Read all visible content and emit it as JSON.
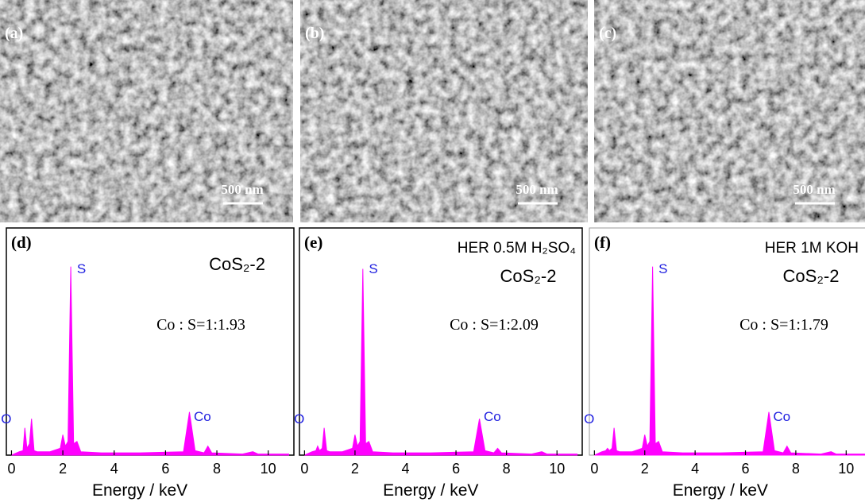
{
  "sem_panels": [
    {
      "label": "(a)",
      "scale_bar": "500 nm"
    },
    {
      "label": "(b)",
      "scale_bar": "500 nm"
    },
    {
      "label": "(c)",
      "scale_bar": "500 nm"
    }
  ],
  "chart_data": [
    {
      "type": "area",
      "panel_label": "(d)",
      "sample": "CoS₂-2",
      "ratio_text": "Co : S=1:1.93",
      "peak_labels": [
        "O",
        "S",
        "Co"
      ],
      "color": "#ff00ff",
      "xlabel": "Energy / keV",
      "xlim": [
        -0.2,
        11
      ],
      "ylim": [
        0,
        100
      ],
      "xticks": [
        0,
        2,
        4,
        6,
        8,
        10
      ],
      "x": [
        0,
        0.3,
        0.45,
        0.52,
        0.6,
        0.7,
        0.78,
        0.88,
        1.0,
        1.5,
        1.9,
        2.0,
        2.1,
        2.2,
        2.31,
        2.42,
        2.55,
        2.7,
        3.5,
        5,
        6.7,
        6.93,
        7.15,
        7.5,
        7.65,
        7.8,
        9,
        9.4,
        9.6,
        10.8
      ],
      "values": [
        0,
        1.5,
        2,
        12,
        3,
        5,
        16,
        2,
        1.5,
        1.5,
        3,
        9,
        4,
        6,
        83,
        5,
        6,
        1.5,
        1,
        1,
        1.5,
        19,
        2,
        1,
        4,
        1,
        0.5,
        1.5,
        0.5,
        0.5
      ]
    },
    {
      "type": "area",
      "panel_label": "(e)",
      "title": "HER 0.5M H₂SO₄",
      "sample": "CoS₂-2",
      "ratio_text": "Co : S=1:2.09",
      "peak_labels": [
        "O",
        "S",
        "Co"
      ],
      "color": "#ff00ff",
      "xlabel": "Energy / keV",
      "xlim": [
        -0.2,
        11
      ],
      "ylim": [
        0,
        100
      ],
      "xticks": [
        0,
        2,
        4,
        6,
        8,
        10
      ],
      "x": [
        0,
        0.3,
        0.45,
        0.52,
        0.6,
        0.7,
        0.78,
        0.88,
        1.0,
        1.5,
        1.9,
        2.0,
        2.1,
        2.2,
        2.31,
        2.42,
        2.55,
        2.7,
        3.5,
        5,
        6.7,
        6.93,
        7.15,
        7.5,
        7.65,
        7.8,
        9,
        9.4,
        9.6,
        10.8
      ],
      "values": [
        0,
        1.5,
        2,
        4,
        2,
        3,
        12,
        2,
        1.5,
        1.5,
        3,
        9,
        4,
        6,
        82,
        5,
        6,
        1.5,
        1,
        1,
        1.5,
        16,
        2,
        1,
        3,
        1,
        0.5,
        1.5,
        0.5,
        0.5
      ]
    },
    {
      "type": "area",
      "panel_label": "(f)",
      "title": "HER 1M KOH",
      "sample": "CoS₂-2",
      "ratio_text": "Co : S=1:1.79",
      "peak_labels": [
        "O",
        "S",
        "Co"
      ],
      "color": "#ff00ff",
      "xlabel": "Energy / keV",
      "xlim": [
        -0.2,
        11
      ],
      "ylim": [
        0,
        100
      ],
      "xticks": [
        0,
        2,
        4,
        6,
        8,
        10
      ],
      "x": [
        0,
        0.3,
        0.45,
        0.52,
        0.6,
        0.7,
        0.78,
        0.88,
        1.0,
        1.5,
        1.9,
        2.0,
        2.1,
        2.2,
        2.31,
        2.42,
        2.55,
        2.7,
        3.5,
        5,
        6.7,
        6.93,
        7.15,
        7.5,
        7.65,
        7.8,
        9,
        9.4,
        9.6,
        10.8
      ],
      "values": [
        0,
        1.5,
        2,
        3,
        2,
        3,
        12,
        2,
        1.5,
        1.5,
        3,
        9,
        4,
        6,
        83,
        5,
        6,
        1.5,
        1,
        1,
        1.5,
        19,
        2,
        1,
        4,
        1,
        0.5,
        1.5,
        0.5,
        0.5
      ]
    }
  ]
}
